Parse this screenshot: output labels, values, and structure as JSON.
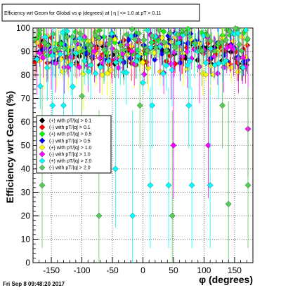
{
  "chart_data": {
    "type": "scatter",
    "title": "Efficiency wrt Geom for Global vs φ (degrees) at | η | <= 1.0 at pT > 0.11",
    "xlabel": "φ (degrees)",
    "ylabel": "Efficiency wrt Geom (%)",
    "xlim": [
      -180,
      180
    ],
    "ylim": [
      0,
      100
    ],
    "xticks": [
      -150,
      -100,
      -50,
      0,
      50,
      100,
      150
    ],
    "yticks": [
      0,
      10,
      20,
      30,
      40,
      50,
      60,
      70,
      80,
      90,
      100
    ],
    "grid": true,
    "legend_position": "middle-left",
    "series": [
      {
        "name": "(+) with pT/|q| > 0.1",
        "color": "#000000",
        "marker": "diamond"
      },
      {
        "name": "(-) with pT/|q| > 0.1",
        "color": "#ff0000",
        "marker": "diamond"
      },
      {
        "name": "(+) with pT/|q| > 0.5",
        "color": "#00ff00",
        "marker": "diamond"
      },
      {
        "name": "(-) with pT/|q| > 0.5",
        "color": "#0000ff",
        "marker": "diamond"
      },
      {
        "name": "(+) with pT/|q| > 1.0",
        "color": "#ffff00",
        "marker": "diamond"
      },
      {
        "name": "(-) with pT/|q| > 1.0",
        "color": "#ff00ff",
        "marker": "diamond"
      },
      {
        "name": "(+) with pT/|q| > 2.0",
        "color": "#00ffff",
        "marker": "diamond"
      },
      {
        "name": "(-) with pT/|q| > 2.0",
        "color": "#55cc55",
        "marker": "diamond"
      }
    ],
    "lowPoints": [
      {
        "series": 7,
        "x": -165,
        "y": 33
      },
      {
        "series": 7,
        "x": -72,
        "y": 20
      },
      {
        "series": 6,
        "x": -45,
        "y": 40
      },
      {
        "series": 6,
        "x": -17,
        "y": 20
      },
      {
        "series": 6,
        "x": 12,
        "y": 33
      },
      {
        "series": 6,
        "x": 42,
        "y": 33
      },
      {
        "series": 7,
        "x": 48,
        "y": 20
      },
      {
        "series": 6,
        "x": 80,
        "y": 33
      },
      {
        "series": 5,
        "x": 107,
        "y": 50
      },
      {
        "series": 6,
        "x": 110,
        "y": 33
      },
      {
        "series": 7,
        "x": 140,
        "y": 25
      },
      {
        "series": 5,
        "x": 172,
        "y": 57
      },
      {
        "series": 7,
        "x": 172,
        "y": 33
      },
      {
        "series": 6,
        "x": -115,
        "y": 75
      },
      {
        "series": 6,
        "x": -130,
        "y": 67
      },
      {
        "series": 7,
        "x": -100,
        "y": 71
      },
      {
        "series": 6,
        "x": -148,
        "y": 67
      },
      {
        "series": 5,
        "x": 50,
        "y": 50
      },
      {
        "series": 6,
        "x": 15,
        "y": 67
      },
      {
        "series": 7,
        "x": -5,
        "y": 67
      },
      {
        "series": 6,
        "x": 75,
        "y": 67
      },
      {
        "series": 7,
        "x": 130,
        "y": 67
      }
    ]
  },
  "footer": "Fri Sep  8 09:48:20 2017"
}
